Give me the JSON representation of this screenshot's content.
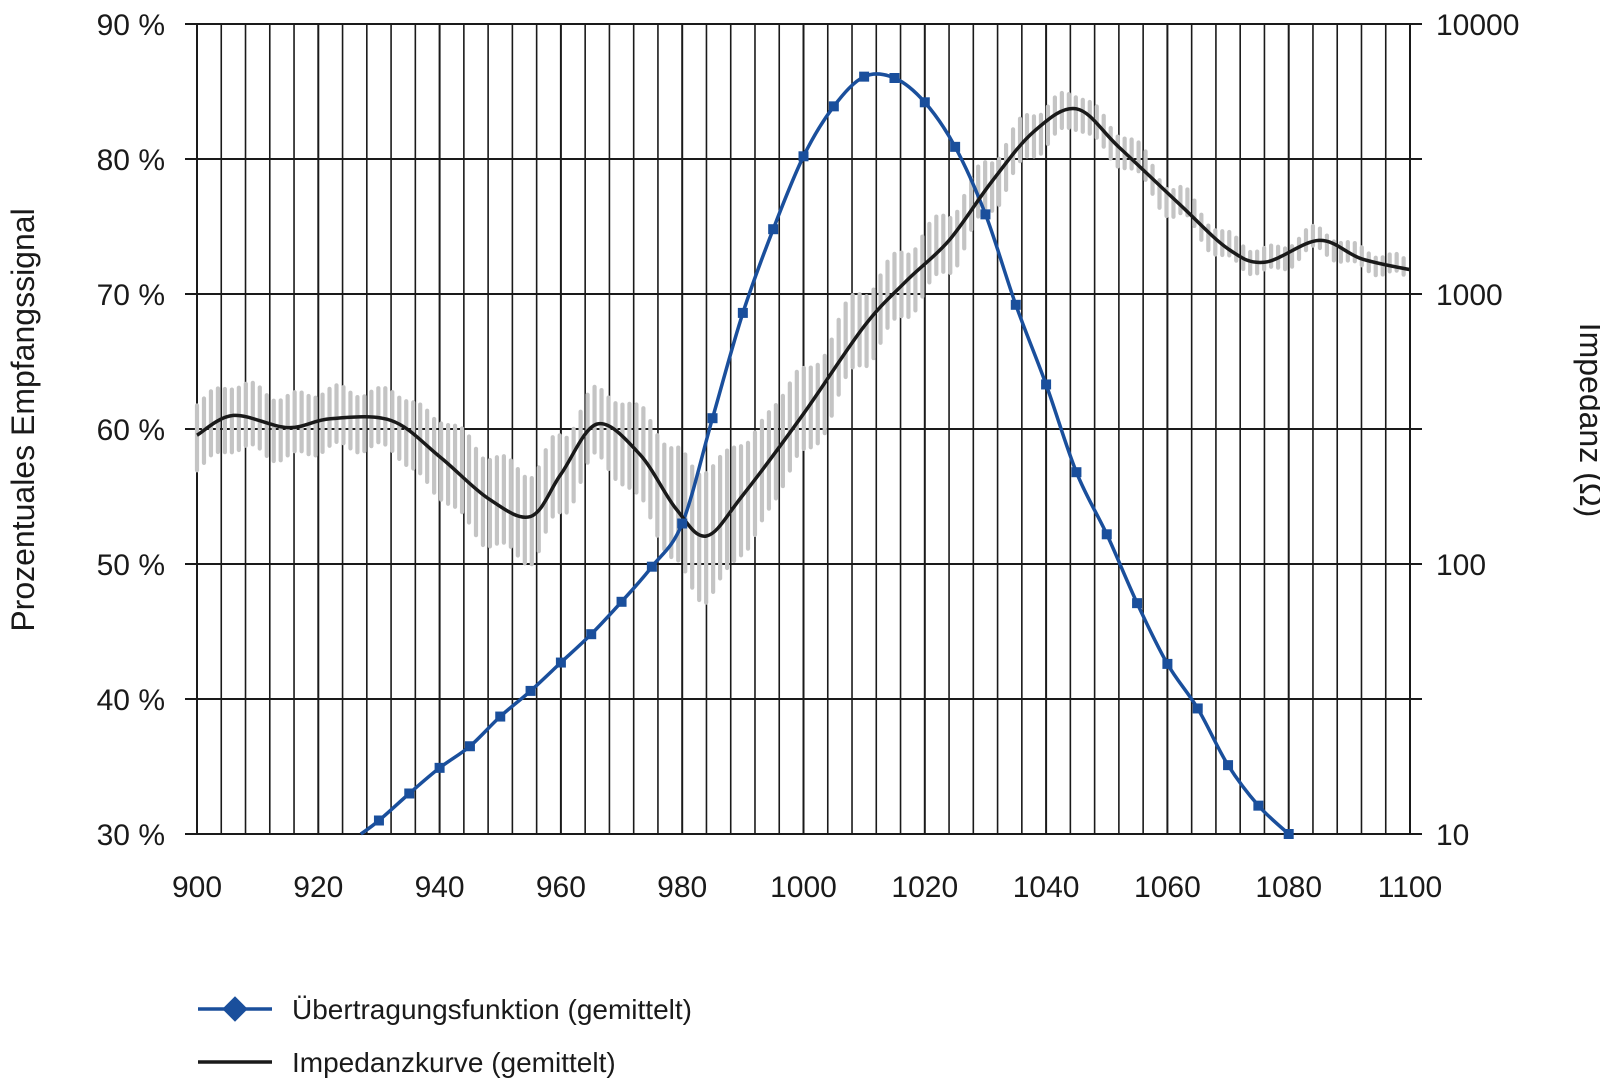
{
  "chart_data": {
    "type": "line",
    "title": "",
    "xlabel": "",
    "ylabel_left": "Prozentuales Empfangssignal",
    "ylabel_right": "Impedanz (Ω)",
    "xlim": [
      900,
      1100
    ],
    "ylim_left": [
      30,
      90
    ],
    "ylim_right": [
      10,
      10000
    ],
    "right_axis_scale": "log",
    "grid": true,
    "legend_position": "bottom-left",
    "x_ticks": [
      "900",
      "920",
      "940",
      "960",
      "980",
      "1000",
      "1020",
      "1040",
      "1060",
      "1080",
      "1100"
    ],
    "y_left_ticks": [
      "30 %",
      "40 %",
      "50 %",
      "60 %",
      "70 %",
      "80 %",
      "90 %"
    ],
    "y_right_ticks": [
      "10",
      "100",
      "1000",
      "10000"
    ],
    "colors": {
      "transfer": "#1a4f9c",
      "impedance": "#1a1a1a",
      "impedance_band": "#c4c4c4",
      "grid": "#1a1a1a"
    },
    "series": [
      {
        "name": "Übertragungsfunktion (gemittelt)",
        "axis": "left",
        "marker": "square",
        "x": [
          927,
          930,
          935,
          940,
          945,
          950,
          955,
          960,
          965,
          970,
          975,
          980,
          985,
          990,
          995,
          1000,
          1005,
          1010,
          1015,
          1020,
          1025,
          1030,
          1035,
          1040,
          1045,
          1050,
          1055,
          1060,
          1065,
          1070,
          1075,
          1080
        ],
        "y": [
          30.0,
          31.0,
          33.0,
          34.9,
          36.5,
          38.7,
          40.6,
          42.7,
          44.8,
          47.2,
          49.8,
          53.0,
          60.8,
          68.6,
          74.8,
          80.2,
          83.9,
          86.1,
          86.0,
          84.2,
          80.9,
          75.9,
          69.2,
          63.3,
          56.8,
          52.2,
          47.1,
          42.6,
          39.3,
          35.1,
          32.1,
          30.0
        ]
      },
      {
        "name": "Impedanzkurve (gemittelt)",
        "axis": "right",
        "x": [
          900,
          906,
          915,
          922,
          932,
          940,
          948,
          955,
          960,
          966,
          973,
          979,
          984,
          990,
          1000,
          1010,
          1017,
          1024,
          1031,
          1038,
          1045,
          1052,
          1062,
          1070,
          1076,
          1085,
          1092,
          1100
        ],
        "y": [
          300,
          355,
          320,
          345,
          340,
          250,
          175,
          150,
          215,
          330,
          255,
          160,
          127,
          180,
          360,
          760,
          1120,
          1580,
          2600,
          4000,
          4850,
          3500,
          2150,
          1470,
          1310,
          1580,
          1350,
          1230
        ]
      }
    ],
    "impedance_band_halfwidth_log10": [
      [
        900,
        0.12
      ],
      [
        930,
        0.1
      ],
      [
        945,
        0.16
      ],
      [
        955,
        0.16
      ],
      [
        966,
        0.12
      ],
      [
        984,
        0.24
      ],
      [
        990,
        0.2
      ],
      [
        1000,
        0.15
      ],
      [
        1015,
        0.12
      ],
      [
        1030,
        0.09
      ],
      [
        1045,
        0.06
      ],
      [
        1060,
        0.05
      ],
      [
        1075,
        0.04
      ],
      [
        1100,
        0.03
      ]
    ]
  }
}
